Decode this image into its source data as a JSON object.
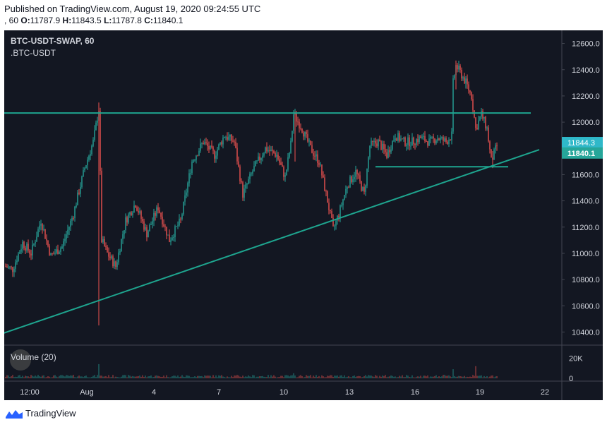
{
  "header": {
    "published": "Published on TradingView.com, August 19, 2020 09:24:55 UTC",
    "interval": ", 60",
    "o_label": "O:",
    "o_value": "11787.9",
    "h_label": "H:",
    "h_value": "11843.5",
    "l_label": "L:",
    "l_value": "11787.8",
    "c_label": "C:",
    "c_value": "11840.1"
  },
  "chart": {
    "symbol": "BTC-USDT-SWAP, 60",
    "compare": ".BTC-USDT",
    "volume_label": "Volume (20)",
    "bg": "#131722",
    "up_color": "#26a69a",
    "down_color": "#ef5350",
    "line_color": "#1ea58f",
    "label_current": "11844.3",
    "label_current_bg": "#2fb8c9",
    "label_close": "11840.1",
    "label_close_bg": "#26a69a"
  },
  "chart_data": {
    "type": "candlestick",
    "ylim": [
      10300,
      12700
    ],
    "y_ticks": [
      "12600.0",
      "12400.0",
      "12200.0",
      "12000.0",
      "11800.0",
      "11600.0",
      "11400.0",
      "11200.0",
      "11000.0",
      "10800.0",
      "10600.0",
      "10400.0"
    ],
    "volume_ticks": [
      "20K",
      "0"
    ],
    "x_ticks": [
      "12:00",
      "Aug",
      "4",
      "7",
      "10",
      "13",
      "16",
      "19",
      "22"
    ],
    "price_path": [
      [
        0,
        10900
      ],
      [
        5,
        10880
      ],
      [
        12,
        11080
      ],
      [
        18,
        11000
      ],
      [
        25,
        11250
      ],
      [
        32,
        10980
      ],
      [
        40,
        11050
      ],
      [
        48,
        11300
      ],
      [
        56,
        11650
      ],
      [
        62,
        11850
      ],
      [
        66,
        12100
      ],
      [
        68,
        11100
      ],
      [
        72,
        11000
      ],
      [
        78,
        10900
      ],
      [
        85,
        11250
      ],
      [
        92,
        11380
      ],
      [
        100,
        11150
      ],
      [
        108,
        11350
      ],
      [
        116,
        11100
      ],
      [
        124,
        11250
      ],
      [
        132,
        11700
      ],
      [
        140,
        11850
      ],
      [
        148,
        11750
      ],
      [
        155,
        11900
      ],
      [
        162,
        11850
      ],
      [
        168,
        11450
      ],
      [
        176,
        11650
      ],
      [
        184,
        11800
      ],
      [
        192,
        11750
      ],
      [
        198,
        11580
      ],
      [
        202,
        11830
      ],
      [
        204,
        12060
      ],
      [
        210,
        11950
      ],
      [
        216,
        11800
      ],
      [
        222,
        11700
      ],
      [
        228,
        11400
      ],
      [
        232,
        11180
      ],
      [
        236,
        11300
      ],
      [
        242,
        11520
      ],
      [
        248,
        11620
      ],
      [
        254,
        11450
      ],
      [
        258,
        11820
      ],
      [
        264,
        11850
      ],
      [
        270,
        11750
      ],
      [
        276,
        11900
      ],
      [
        282,
        11850
      ],
      [
        288,
        11850
      ],
      [
        294,
        11880
      ],
      [
        300,
        11850
      ],
      [
        306,
        11880
      ],
      [
        312,
        11850
      ],
      [
        316,
        11900
      ],
      [
        317,
        12300
      ],
      [
        319,
        12430
      ],
      [
        322,
        12380
      ],
      [
        326,
        12300
      ],
      [
        330,
        12200
      ],
      [
        333,
        11950
      ],
      [
        337,
        12060
      ],
      [
        341,
        11950
      ],
      [
        344,
        11700
      ],
      [
        348,
        11820
      ]
    ],
    "wick_extremes": [
      {
        "x": 66,
        "high": 12150,
        "low": 10450
      },
      {
        "x": 205,
        "high": 12080,
        "low": 11700
      },
      {
        "x": 319,
        "high": 12470,
        "low": 12250
      },
      {
        "x": 345,
        "high": 11780,
        "low": 11650
      }
    ],
    "volume_spikes": [
      {
        "x": 66,
        "value": 14000
      },
      {
        "x": 204,
        "value": 5000
      },
      {
        "x": 317,
        "value": 9000
      },
      {
        "x": 333,
        "value": 12000
      }
    ],
    "trendlines": [
      {
        "name": "resistance",
        "x1": -22,
        "y1": 12070,
        "x2": 372,
        "y2": 12070
      },
      {
        "name": "support-short",
        "x1": 262,
        "y1": 11660,
        "x2": 356,
        "y2": 11660
      },
      {
        "name": "ascending-support",
        "x1": -10,
        "y1": 10360,
        "x2": 378,
        "y2": 11790
      }
    ]
  },
  "brand": {
    "name": "TradingView"
  }
}
